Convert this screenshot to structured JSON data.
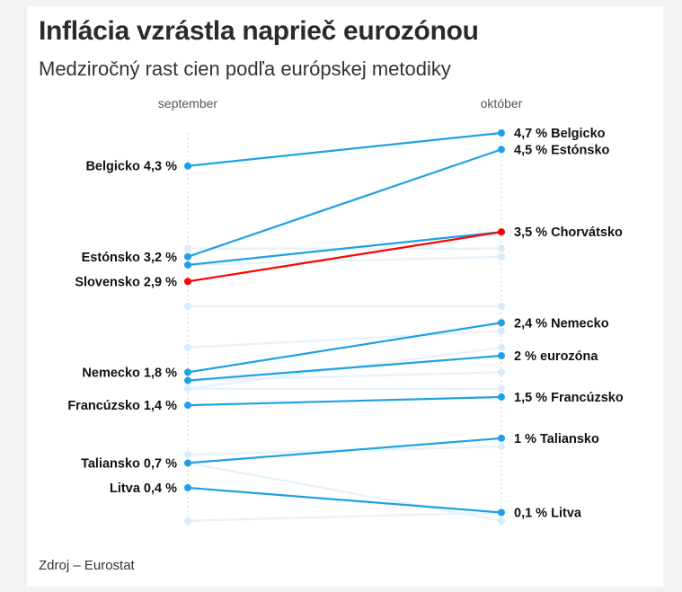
{
  "title": "Inflácia vzrástla naprieč eurozónou",
  "subtitle": "Medziročný rast cien podľa európskej metodiky",
  "source": "Zdroj – Eurostat",
  "colors": {
    "highlight": "#1fa0e5",
    "slovakia": "#ff0000",
    "faded_line": "#e6f3fc",
    "faded_dot": "#d7ebf9",
    "axis": "#cccccc"
  },
  "chart_data": {
    "type": "slope",
    "categories": [
      "september",
      "október"
    ],
    "unit": "%",
    "ylim": [
      0,
      4.7
    ],
    "grid": false,
    "series": [
      {
        "name": "Belgicko",
        "values": [
          4.3,
          4.7
        ],
        "style": "highlight",
        "left_label": "Belgicko 4,3 %",
        "right_label": "4,7 % Belgicko"
      },
      {
        "name": "Estónsko",
        "values": [
          3.2,
          4.5
        ],
        "style": "highlight",
        "left_label": "Estónsko 3,2 %",
        "right_label": "4,5 % Estónsko"
      },
      {
        "name": "Chorvátsko",
        "values": [
          3.1,
          3.5
        ],
        "style": "highlight",
        "left_label": "",
        "right_label": "3,5 % Chorvátsko"
      },
      {
        "name": "Slovensko",
        "values": [
          2.9,
          3.5
        ],
        "style": "slovakia",
        "left_label": "Slovensko 2,9 %",
        "right_label": ""
      },
      {
        "name": "Nemecko",
        "values": [
          1.8,
          2.4
        ],
        "style": "highlight",
        "left_label": "Nemecko 1,8 %",
        "right_label": "2,4 % Nemecko"
      },
      {
        "name": "eurozóna",
        "values": [
          1.7,
          2.0
        ],
        "style": "highlight",
        "left_label": "",
        "right_label": "2 % eurozóna"
      },
      {
        "name": "Francúzsko",
        "values": [
          1.4,
          1.5
        ],
        "style": "highlight",
        "left_label": "Francúzsko 1,4 %",
        "right_label": "1,5 % Francúzsko"
      },
      {
        "name": "Taliansko",
        "values": [
          0.7,
          1.0
        ],
        "style": "highlight",
        "left_label": "Taliansko 0,7 %",
        "right_label": "1 % Taliansko"
      },
      {
        "name": "Litva",
        "values": [
          0.4,
          0.1
        ],
        "style": "highlight",
        "left_label": "Litva 0,4 %",
        "right_label": "0,1 % Litva"
      },
      {
        "values": [
          3.3,
          3.3
        ],
        "style": "faded"
      },
      {
        "values": [
          3.1,
          3.2
        ],
        "style": "faded"
      },
      {
        "values": [
          2.6,
          2.6
        ],
        "style": "faded"
      },
      {
        "values": [
          2.1,
          2.3
        ],
        "style": "faded"
      },
      {
        "values": [
          1.6,
          2.1
        ],
        "style": "faded"
      },
      {
        "values": [
          1.7,
          1.8
        ],
        "style": "faded"
      },
      {
        "values": [
          1.6,
          1.6
        ],
        "style": "faded"
      },
      {
        "values": [
          0.8,
          0.9
        ],
        "style": "faded"
      },
      {
        "values": [
          0.7,
          0.0
        ],
        "style": "faded"
      },
      {
        "values": [
          0.0,
          0.1
        ],
        "style": "faded"
      }
    ]
  }
}
